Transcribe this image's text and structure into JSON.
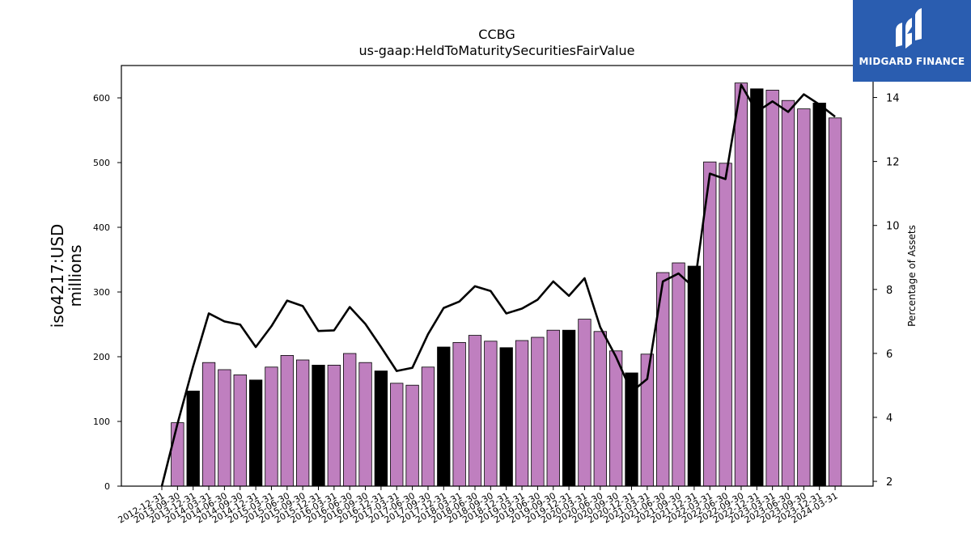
{
  "chart_data": {
    "type": "bar",
    "title": "CCBG",
    "subtitle": "us-gaap:HeldToMaturitySecuritiesFairValue",
    "ylabel": "iso4217:USD\nmillions",
    "y2label": "Percentage of Assets",
    "ylim": [
      0,
      650
    ],
    "y2lim": [
      1.85,
      15.0
    ],
    "yticks": [
      0,
      100,
      200,
      300,
      400,
      500,
      600
    ],
    "y2ticks": [
      2,
      4,
      6,
      8,
      10,
      12,
      14
    ],
    "categories": [
      "2012-12-31",
      "2013-09-30",
      "2013-12-31",
      "2014-03-31",
      "2014-06-30",
      "2014-09-30",
      "2014-12-31",
      "2015-03-31",
      "2015-06-30",
      "2015-09-30",
      "2015-12-31",
      "2016-03-31",
      "2016-06-30",
      "2016-09-30",
      "2016-12-31",
      "2017-03-31",
      "2017-06-30",
      "2017-09-30",
      "2017-12-31",
      "2018-03-31",
      "2018-06-30",
      "2018-09-30",
      "2018-12-31",
      "2019-03-31",
      "2019-06-30",
      "2019-09-30",
      "2019-12-31",
      "2020-03-31",
      "2020-06-30",
      "2020-09-30",
      "2020-12-31",
      "2021-03-31",
      "2021-06-30",
      "2021-09-30",
      "2021-12-31",
      "2022-03-31",
      "2022-06-30",
      "2022-09-30",
      "2022-12-31",
      "2023-03-31",
      "2023-06-30",
      "2023-09-30",
      "2023-12-31",
      "2024-03-31"
    ],
    "series": [
      {
        "type": "bar",
        "values": [
          0,
          98,
          147,
          191,
          180,
          172,
          164,
          184,
          202,
          195,
          187,
          187,
          205,
          191,
          178,
          159,
          156,
          184,
          215,
          222,
          233,
          224,
          214,
          225,
          230,
          241,
          241,
          258,
          239,
          209,
          175,
          204,
          330,
          345,
          340,
          501,
          499,
          623,
          614,
          612,
          596,
          583,
          592,
          569
        ]
      },
      {
        "type": "line",
        "values": [
          1.85,
          3.8,
          5.6,
          7.25,
          7.0,
          6.9,
          6.2,
          6.85,
          7.65,
          7.48,
          6.7,
          6.72,
          7.45,
          6.92,
          6.2,
          5.45,
          5.55,
          6.6,
          7.42,
          7.62,
          8.1,
          7.95,
          7.25,
          7.4,
          7.68,
          8.25,
          7.8,
          8.35,
          6.82,
          5.9,
          4.8,
          5.2,
          8.25,
          8.5,
          8.05,
          11.62,
          11.45,
          14.4,
          13.55,
          13.88,
          13.55,
          14.1,
          13.78,
          13.4
        ]
      }
    ],
    "highlight_indices": [
      2,
      6,
      10,
      14,
      18,
      22,
      26,
      30,
      34,
      38,
      42
    ],
    "colors": {
      "bar": "#bf7fbf",
      "bar_highlight": "#000000",
      "line": "#000000",
      "bar_edge": "#000000"
    }
  },
  "logo": {
    "text": "MIDGARD FINANCE",
    "bg": "#2a5db0"
  }
}
